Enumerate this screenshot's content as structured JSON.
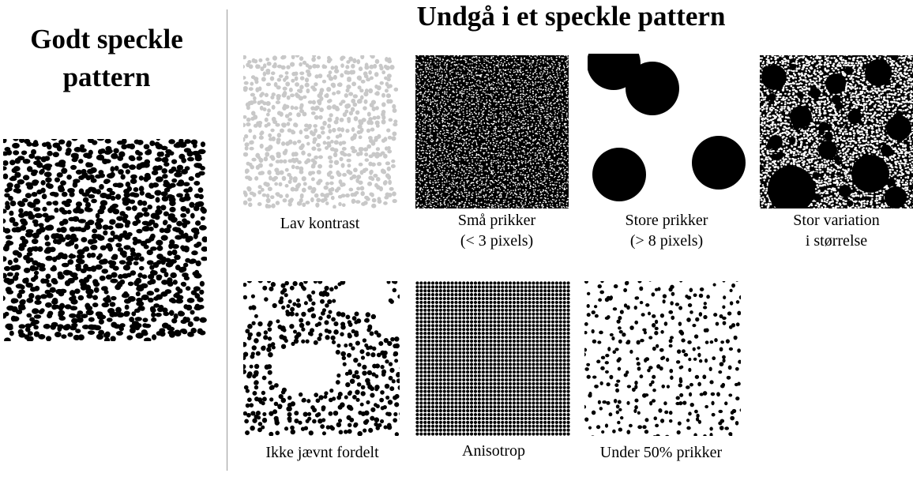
{
  "left_section": {
    "title_line1": "Godt speckle",
    "title_line2": "pattern"
  },
  "right_section": {
    "title": "Undgå i et speckle pattern",
    "panels": [
      {
        "line1": "Lav kontrast",
        "line2": ""
      },
      {
        "line1": "Små prikker",
        "line2": "(< 3 pixels)"
      },
      {
        "line1": "Store prikker",
        "line2": "(> 8 pixels)"
      },
      {
        "line1": "Stor variation",
        "line2": "i størrelse"
      },
      {
        "line1": "Ikke jævnt fordelt",
        "line2": ""
      },
      {
        "line1": "Anisotrop",
        "line2": ""
      },
      {
        "line1": "Under 50% prikker",
        "line2": ""
      }
    ]
  },
  "colors": {
    "dot": "#000000",
    "low_contrast_dot": "#c8c8c8",
    "divider": "#9a9a9a"
  }
}
